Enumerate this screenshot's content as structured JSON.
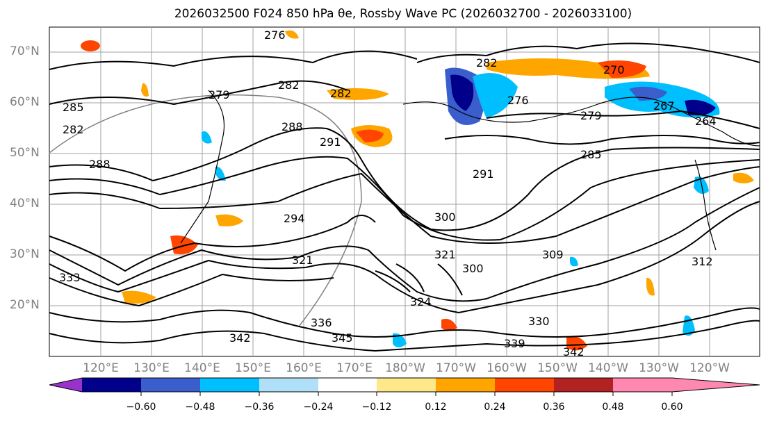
{
  "title": "2026032500 F024 850 hPa θe, Rossby Wave PC (2026032700 - 2026033100)",
  "latitude_labels": [
    "70°N",
    "60°N",
    "50°N",
    "40°N",
    "30°N",
    "20°N"
  ],
  "longitude_labels": [
    "120°E",
    "130°E",
    "140°E",
    "150°E",
    "160°E",
    "170°E",
    "180°W",
    "170°W",
    "160°W",
    "150°W",
    "140°W",
    "130°W",
    "120°W"
  ],
  "contour_labels": [
    "276",
    "279",
    "282",
    "282",
    "282",
    "285",
    "285",
    "288",
    "288",
    "291",
    "291",
    "294",
    "300",
    "300",
    "309",
    "312",
    "321",
    "321",
    "324",
    "330",
    "333",
    "336",
    "339",
    "342",
    "342",
    "345",
    "264",
    "267",
    "270",
    "276",
    "279",
    "282"
  ],
  "colorbar": {
    "ticks": [
      "−0.60",
      "−0.48",
      "−0.36",
      "−0.24",
      "−0.12",
      "0.12",
      "0.24",
      "0.36",
      "0.48",
      "0.60"
    ],
    "colors": [
      "#9932cc",
      "#00008b",
      "#3a5fcd",
      "#00bfff",
      "#b0e0f8",
      "#ffffff",
      "#ffe88a",
      "#ffa500",
      "#ff4500",
      "#b22222",
      "#ff88b0"
    ]
  },
  "colors": {
    "positive_weak": "#ffe88a",
    "positive_mid": "#ffa500",
    "positive_strong": "#ff4500",
    "negative_weak": "#b0e0f8",
    "negative_mid": "#00bfff",
    "negative_strong": "#3a5fcd",
    "negative_xstrong": "#00008b"
  }
}
